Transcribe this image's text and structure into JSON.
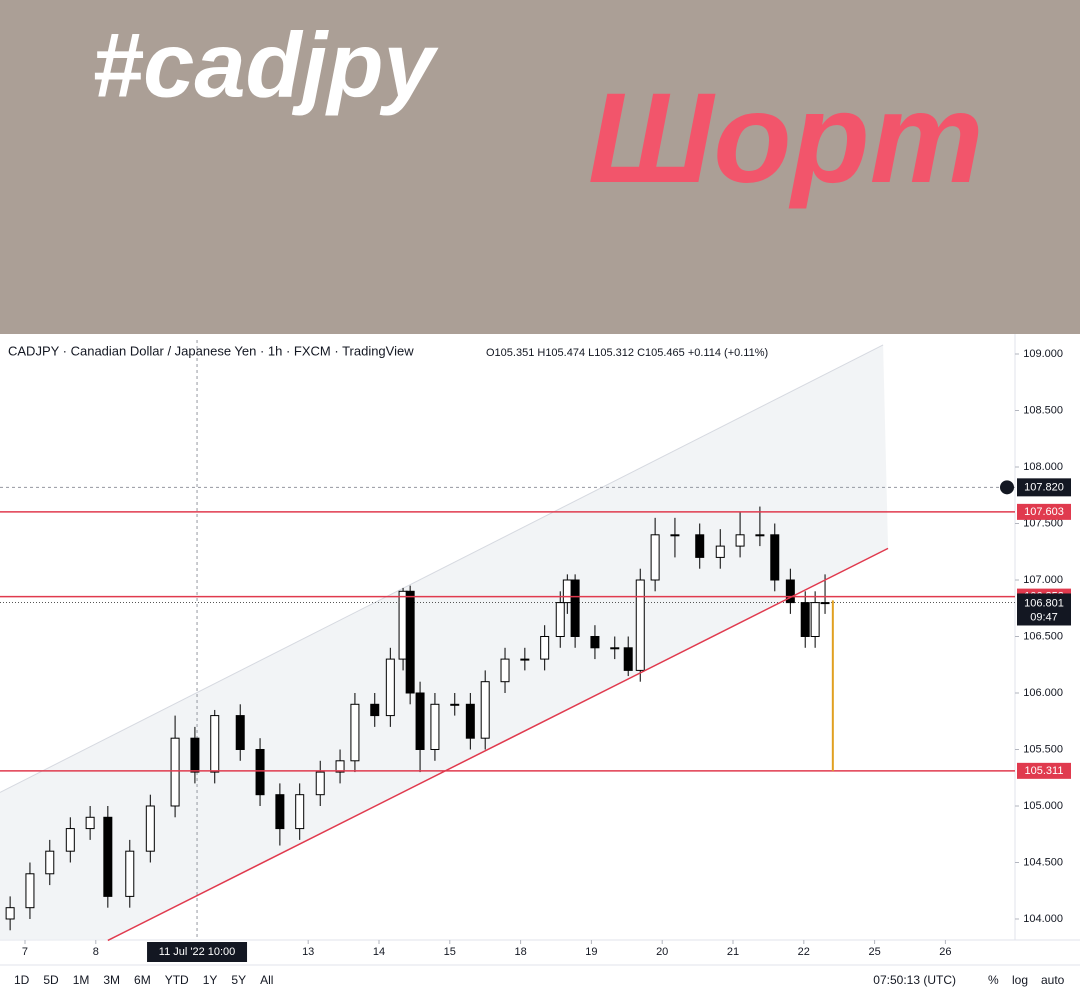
{
  "banner": {
    "hashtag": "#cadjpy",
    "label": "Шорт"
  },
  "chart_data": {
    "type": "candlestick",
    "title": "CADJPY · Canadian Dollar / Japanese Yen · 1h · FXCM · TradingView",
    "ohlc_legend": "O105.351 H105.474 L105.312 C105.465 +0.114 (+0.11%)",
    "x": [
      -0.21,
      0.07,
      0.35,
      0.64,
      0.92,
      1.17,
      1.48,
      1.77,
      2.12,
      2.4,
      2.68,
      3.04,
      3.32,
      3.6,
      3.88,
      4.17,
      4.45,
      4.66,
      4.94,
      5.16,
      5.34,
      5.44,
      5.58,
      5.79,
      6.07,
      6.29,
      6.5,
      6.78,
      7.06,
      7.34,
      7.56,
      7.66,
      7.77,
      8.05,
      8.33,
      8.52,
      8.69,
      8.9,
      9.18,
      9.53,
      9.82,
      10.1,
      10.38,
      10.59,
      10.81,
      11.02,
      11.16,
      11.3
    ],
    "open": [
      104.0,
      104.1,
      104.4,
      104.6,
      104.8,
      104.9,
      104.2,
      104.6,
      105.0,
      105.6,
      105.3,
      105.8,
      105.5,
      105.1,
      104.8,
      105.1,
      105.3,
      105.4,
      105.9,
      105.8,
      106.3,
      106.9,
      106.0,
      105.5,
      105.9,
      105.9,
      105.6,
      106.1,
      106.3,
      106.3,
      106.5,
      106.8,
      107.0,
      106.5,
      106.4,
      106.4,
      106.2,
      107.0,
      107.4,
      107.4,
      107.2,
      107.3,
      107.4,
      107.4,
      107.0,
      106.8,
      106.5,
      106.8
    ],
    "high": [
      104.2,
      104.5,
      104.7,
      104.9,
      105.0,
      105.0,
      104.7,
      105.1,
      105.8,
      105.7,
      105.85,
      105.9,
      105.6,
      105.2,
      105.2,
      105.4,
      105.5,
      106.0,
      106.0,
      106.4,
      106.93,
      106.95,
      106.1,
      106.0,
      106.0,
      106.0,
      106.2,
      106.4,
      106.4,
      106.6,
      106.9,
      107.05,
      107.05,
      106.6,
      106.5,
      106.5,
      107.1,
      107.55,
      107.55,
      107.5,
      107.45,
      107.6,
      107.65,
      107.5,
      107.1,
      106.9,
      106.9,
      107.05
    ],
    "low": [
      103.9,
      104.0,
      104.3,
      104.5,
      104.7,
      104.1,
      104.1,
      104.5,
      104.9,
      105.2,
      105.2,
      105.4,
      105.0,
      104.65,
      104.7,
      105.0,
      105.2,
      105.3,
      105.7,
      105.7,
      106.2,
      105.9,
      105.3,
      105.4,
      105.8,
      105.5,
      105.5,
      106.0,
      106.2,
      106.2,
      106.4,
      106.7,
      106.4,
      106.3,
      106.3,
      106.15,
      106.1,
      106.9,
      107.2,
      107.1,
      107.1,
      107.2,
      107.3,
      106.9,
      106.7,
      106.4,
      106.4,
      106.7
    ],
    "close": [
      104.1,
      104.4,
      104.6,
      104.8,
      104.9,
      104.2,
      104.6,
      105.0,
      105.6,
      105.3,
      105.8,
      105.5,
      105.1,
      104.8,
      105.1,
      105.3,
      105.4,
      105.9,
      105.8,
      106.3,
      106.9,
      106.0,
      105.5,
      105.9,
      105.9,
      105.6,
      106.1,
      106.3,
      106.3,
      106.5,
      106.8,
      107.0,
      106.5,
      106.4,
      106.4,
      106.2,
      107.0,
      107.4,
      107.4,
      107.2,
      107.3,
      107.4,
      107.4,
      107.0,
      106.8,
      106.5,
      106.8,
      106.8
    ],
    "up_color": "#ffffff",
    "down_color": "#000000",
    "xlim": [
      -0.353,
      13.983
    ],
    "ylim": [
      103.814,
      109.124
    ],
    "xticks": [
      {
        "value": 0,
        "label": "7"
      },
      {
        "value": 1,
        "label": "8"
      },
      {
        "value": 4,
        "label": "13"
      },
      {
        "value": 5,
        "label": "14"
      },
      {
        "value": 6,
        "label": "15"
      },
      {
        "value": 7,
        "label": "18"
      },
      {
        "value": 8,
        "label": "19"
      },
      {
        "value": 9,
        "label": "20"
      },
      {
        "value": 10,
        "label": "21"
      },
      {
        "value": 11,
        "label": "22"
      },
      {
        "value": 12,
        "label": "25"
      },
      {
        "value": 13,
        "label": "26"
      }
    ],
    "yticks": [
      {
        "value": 104,
        "label": "104.000"
      },
      {
        "value": 104.5,
        "label": "104.500"
      },
      {
        "value": 105,
        "label": "105.000"
      },
      {
        "value": 105.5,
        "label": "105.500"
      },
      {
        "value": 106,
        "label": "106.000"
      },
      {
        "value": 106.5,
        "label": "106.500"
      },
      {
        "value": 107,
        "label": "107.000"
      },
      {
        "value": 107.5,
        "label": "107.500"
      },
      {
        "value": 108,
        "label": "108.000"
      },
      {
        "value": 108.5,
        "label": "108.500"
      },
      {
        "value": 109,
        "label": "109.000"
      }
    ],
    "levels": [
      107.603,
      106.853,
      105.311
    ],
    "level_color": "#e03a4e",
    "crosshair_price": {
      "value": 107.82,
      "label": "107.820"
    },
    "crosshair_x": {
      "value": 2.43,
      "label": "11 Jul '22  10:00"
    },
    "last_price": {
      "value": 106.801,
      "label": "106.801",
      "countdown": "09:47"
    },
    "channel": {
      "upper": {
        "x": [
          -0.353,
          12.12
        ],
        "y": [
          105.12,
          109.08
        ]
      },
      "lower": {
        "x": [
          1.17,
          12.19
        ],
        "y": [
          103.81,
          107.28
        ]
      }
    },
    "target": {
      "x": 11.41,
      "y": [
        106.82,
        105.311
      ],
      "color": "#e0a020"
    }
  },
  "toolbar": {
    "ranges": [
      "1D",
      "5D",
      "1M",
      "3M",
      "6M",
      "YTD",
      "1Y",
      "5Y",
      "All"
    ],
    "time": "07:50:13 (UTC)",
    "options": [
      "%",
      "log",
      "auto"
    ]
  }
}
